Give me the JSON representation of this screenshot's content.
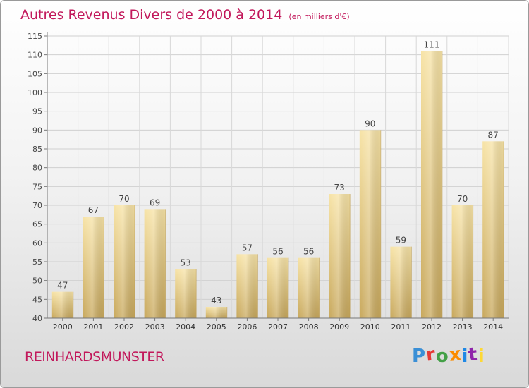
{
  "chart_data": {
    "type": "bar",
    "title": "Autres Revenus Divers de 2000 à 2014",
    "subtitle": "(en milliers d'€)",
    "categories": [
      "2000",
      "2001",
      "2002",
      "2003",
      "2004",
      "2005",
      "2006",
      "2007",
      "2008",
      "2009",
      "2010",
      "2011",
      "2012",
      "2013",
      "2014"
    ],
    "values": [
      47,
      67,
      70,
      69,
      53,
      43,
      57,
      56,
      56,
      73,
      90,
      59,
      111,
      70,
      87
    ],
    "ylim": [
      40,
      115
    ],
    "yticks": [
      40,
      45,
      50,
      55,
      60,
      65,
      70,
      75,
      80,
      85,
      90,
      95,
      100,
      105,
      110,
      115
    ],
    "xlabel": "",
    "ylabel": "",
    "grid": true,
    "data_labels": true,
    "bar_color": "#e8c97a"
  },
  "footer": {
    "location": "REINHARDSMUNSTER",
    "brand": "Proxiti"
  },
  "colors": {
    "title": "#c2185b",
    "brand_letters": [
      "#3a8fd6",
      "#e53935",
      "#43a047",
      "#fb8c00",
      "#1e88e5",
      "#8e24aa",
      "#fdd835"
    ]
  }
}
